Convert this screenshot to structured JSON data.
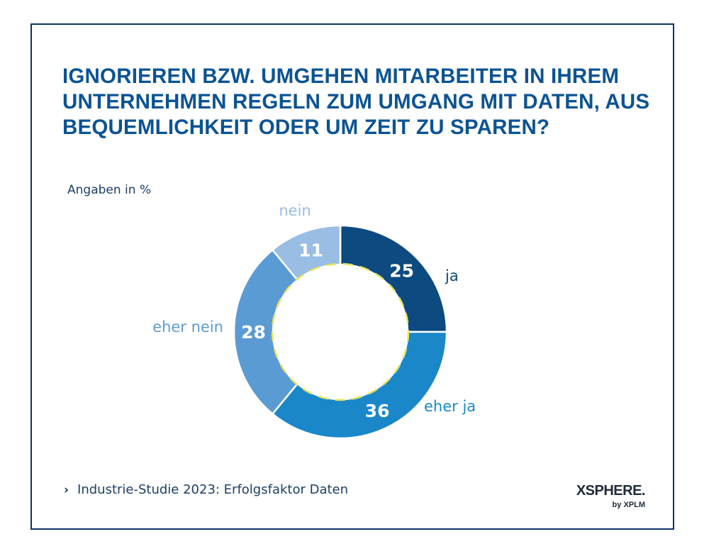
{
  "title": "IGNORIEREN BZW. UMGEHEN MITARBEITER IN IHREM UNTERNEHMEN REGELN ZUM UMGANG MIT DATEN, AUS BEQUEMLICHKEIT ODER UM ZEIT ZU SPAREN?",
  "subtitle": "Angaben in %",
  "footer": {
    "chevron": "›",
    "source": "Industrie-Studie 2023: Erfolgsfaktor Daten"
  },
  "logo": {
    "brand": "XSPHERE.",
    "by": "by XPLM"
  },
  "colors": {
    "title": "#0b5394",
    "frame": "#0d3560",
    "label": "#1d3f66",
    "dashed_ring": "#e8e35c"
  },
  "chart_data": {
    "type": "pie",
    "variant": "donut",
    "title": "",
    "unit": "%",
    "slices": [
      {
        "label": "ja",
        "value": 25,
        "color": "#0c4a80",
        "label_color": "#0c4a80"
      },
      {
        "label": "eher ja",
        "value": 36,
        "color": "#1a87c9",
        "label_color": "#1a87c9"
      },
      {
        "label": "eher nein",
        "value": 28,
        "color": "#5b9bd3",
        "label_color": "#5b9bd3"
      },
      {
        "label": "nein",
        "value": 11,
        "color": "#99bde3",
        "label_color": "#99bde3"
      }
    ]
  }
}
